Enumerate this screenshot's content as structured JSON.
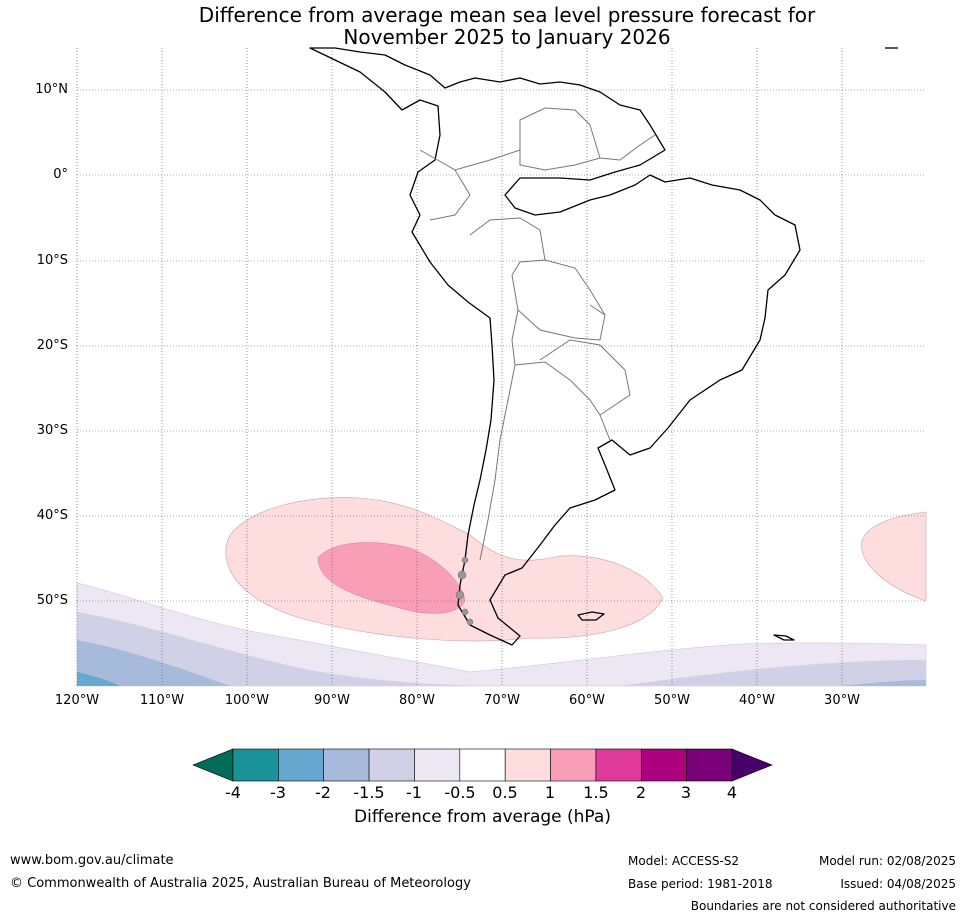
{
  "title_line1": "Difference from average mean sea level pressure forecast for",
  "title_line2": "November 2025 to January 2026",
  "lat_labels": [
    "10°N",
    "0°",
    "10°S",
    "20°S",
    "30°S",
    "40°S",
    "50°S"
  ],
  "lon_labels": [
    "120°W",
    "110°W",
    "100°W",
    "90°W",
    "80°W",
    "70°W",
    "60°W",
    "50°W",
    "40°W",
    "30°W"
  ],
  "colorbar": {
    "ticks": [
      "-4",
      "-3",
      "-2",
      "-1.5",
      "-1",
      "-0.5",
      "0.5",
      "1",
      "1.5",
      "2",
      "3",
      "4"
    ],
    "colors": [
      "#1a9398",
      "#67a8d1",
      "#a6bbdc",
      "#d0d1e6",
      "#ece7f2",
      "#ffffff",
      "#fddddd",
      "#f99eb7",
      "#df3a9a",
      "#ae017e",
      "#7a0177"
    ],
    "under_color": "#016c59",
    "over_color": "#49006a",
    "label": "Difference from average (hPa)"
  },
  "footer": {
    "website": "www.bom.gov.au/climate",
    "copyright": "© Commonwealth of Australia 2025, Australian Bureau of Meteorology",
    "model": "Model: ACCESS-S2",
    "base_period": "Base period: 1981-2018",
    "model_run": "Model run: 02/08/2025",
    "issued": "Issued: 04/08/2025",
    "disclaimer": "Boundaries are not considered authoritative"
  }
}
